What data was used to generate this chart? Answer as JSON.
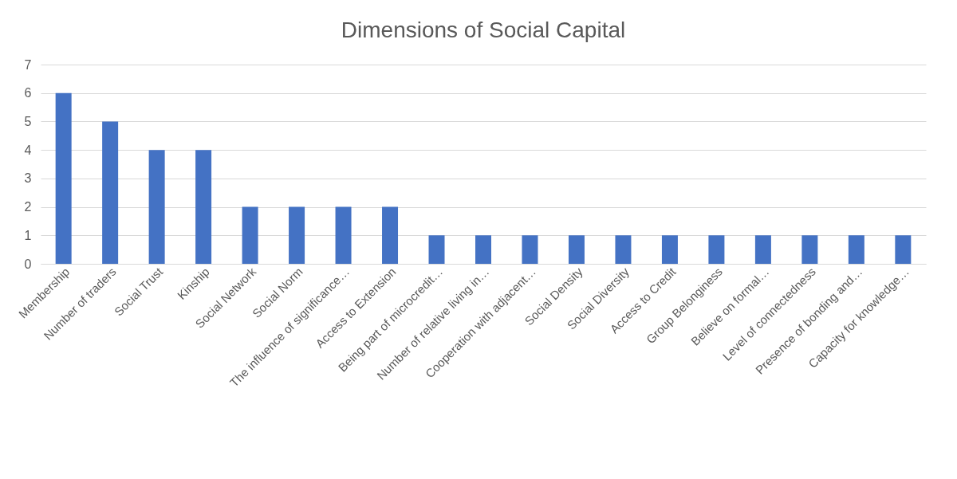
{
  "chart_data": {
    "type": "bar",
    "title": "Dimensions of Social Capital",
    "categories": [
      "Membership",
      "Number of traders",
      "Social Trust",
      "Kinship",
      "Social Network",
      "Social Norm",
      "The influence of significance…",
      "Access to Extension",
      "Being part of microcredit…",
      "Number of relative living in…",
      "Cooperation with adjacent…",
      "Social Density",
      "Social Diversity",
      "Access to Credit",
      "Group Belonginess",
      "Believe on formal…",
      "Level of connectedness",
      "Presence of bonding and…",
      "Capacity for knowledge…"
    ],
    "values": [
      6,
      5,
      4,
      4,
      2,
      2,
      2,
      2,
      1,
      1,
      1,
      1,
      1,
      1,
      1,
      1,
      1,
      1,
      1
    ],
    "color": "#4472c4",
    "ylim": [
      0,
      7
    ],
    "yticks": [
      0,
      1,
      2,
      3,
      4,
      5,
      6,
      7
    ],
    "grid": "y"
  }
}
